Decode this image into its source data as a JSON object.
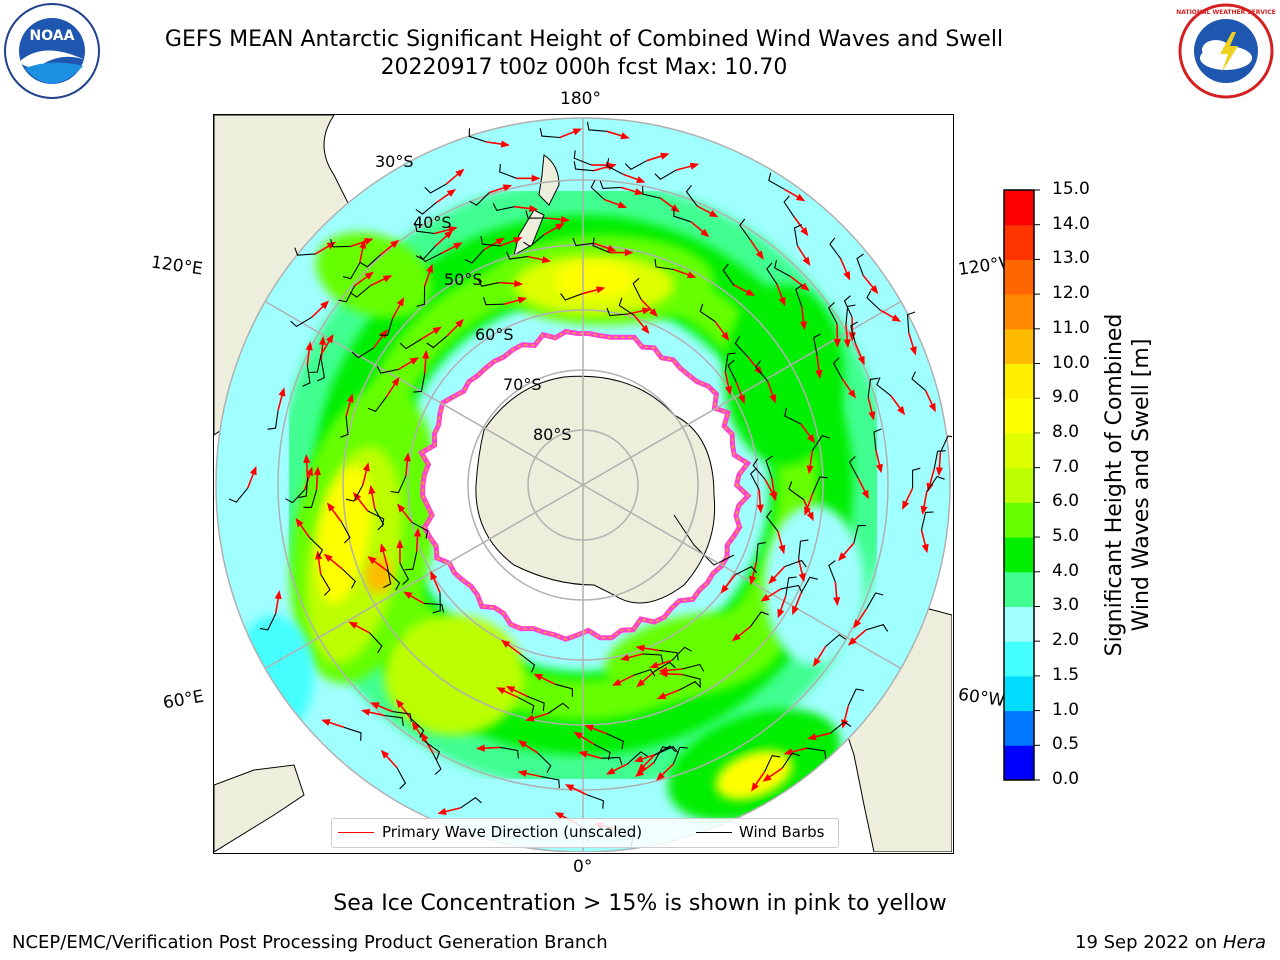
{
  "title": {
    "line1": "GEFS MEAN Antarctic Significant Height of Combined Wind Waves and Swell",
    "line2": "20220917 t00z 000h fcst   Max: 10.70"
  },
  "map": {
    "projection": "south-polar-stereographic",
    "longitude_labels": {
      "top": "180°",
      "bottom": "0°",
      "left_upper": "120°E",
      "left_lower": "60°E",
      "right_upper": "120°W",
      "right_lower": "60°W"
    },
    "latitude_labels": [
      "30°S",
      "40°S",
      "50°S",
      "60°S",
      "70°S",
      "80°S"
    ],
    "colors": {
      "land": "#eeeedc",
      "ice": "#ffffff",
      "ice_edge": "#ff44cc",
      "arrow": "#ff0000",
      "barb": "#000000"
    }
  },
  "colorbar": {
    "label": "Significant Height of Combined Wind Waves and Swell [m]",
    "label_line1": "Significant Height of Combined",
    "label_line2": "Wind Waves and Swell [m]",
    "ticks": [
      "0.0",
      "0.5",
      "1.0",
      "1.5",
      "2.0",
      "3.0",
      "4.0",
      "5.0",
      "6.0",
      "7.0",
      "8.0",
      "9.0",
      "10.0",
      "11.0",
      "12.0",
      "13.0",
      "14.0",
      "15.0"
    ],
    "colors": [
      "#0000ff",
      "#0077ff",
      "#00ddff",
      "#44ffff",
      "#a0ffff",
      "#40ff90",
      "#00ee00",
      "#66ff00",
      "#bbff00",
      "#ddff00",
      "#ffff00",
      "#ffee00",
      "#ffbb00",
      "#ff8800",
      "#ff6600",
      "#ff3300",
      "#ff0000"
    ]
  },
  "legend": {
    "items": [
      {
        "label": "Primary Wave Direction (unscaled)",
        "color": "#ff0000"
      },
      {
        "label": "Wind Barbs",
        "color": "#000000"
      }
    ]
  },
  "notes": {
    "ice": "Sea Ice Concentration > 15% is shown in pink to yellow"
  },
  "footer": {
    "left": "NCEP/EMC/Verification Post Processing Product Generation Branch",
    "right_date": "19 Sep 2022 on ",
    "right_host": "Hera"
  },
  "logos": {
    "left": "NOAA",
    "right": "NATIONAL WEATHER SERVICE"
  }
}
